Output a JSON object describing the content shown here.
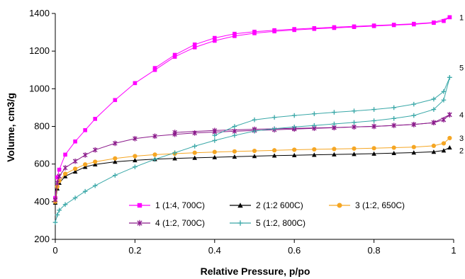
{
  "chart_data": {
    "type": "line",
    "title": "",
    "xlabel": "Relative Pressure, p/po",
    "ylabel": "Volume, cm3/g",
    "xlim": [
      0,
      1
    ],
    "ylim": [
      200,
      1400
    ],
    "xticks": [
      "0",
      "0.2",
      "0.4",
      "0.6",
      "0.8",
      "1"
    ],
    "yticks": [
      "200",
      "400",
      "600",
      "800",
      "1000",
      "1200",
      "1400"
    ],
    "grid": false,
    "legend_position": "bottom-center",
    "series": [
      {
        "name": "1 (1:4, 700C)",
        "end_label": "1",
        "color": "#ff00ff",
        "marker": "square",
        "adsorption": [
          [
            0,
            420
          ],
          [
            0.005,
            530
          ],
          [
            0.01,
            570
          ],
          [
            0.025,
            650
          ],
          [
            0.05,
            720
          ],
          [
            0.075,
            780
          ],
          [
            0.1,
            840
          ],
          [
            0.15,
            940
          ],
          [
            0.2,
            1030
          ],
          [
            0.25,
            1100
          ],
          [
            0.3,
            1170
          ],
          [
            0.35,
            1220
          ],
          [
            0.4,
            1255
          ],
          [
            0.45,
            1280
          ],
          [
            0.5,
            1295
          ],
          [
            0.55,
            1305
          ],
          [
            0.6,
            1312
          ],
          [
            0.65,
            1318
          ],
          [
            0.7,
            1323
          ],
          [
            0.75,
            1328
          ],
          [
            0.8,
            1333
          ],
          [
            0.85,
            1338
          ],
          [
            0.9,
            1342
          ],
          [
            0.95,
            1350
          ],
          [
            0.975,
            1360
          ],
          [
            0.99,
            1380
          ]
        ],
        "desorption": [
          [
            0.99,
            1380
          ],
          [
            0.95,
            1352
          ],
          [
            0.9,
            1345
          ],
          [
            0.85,
            1340
          ],
          [
            0.8,
            1336
          ],
          [
            0.75,
            1331
          ],
          [
            0.7,
            1327
          ],
          [
            0.65,
            1322
          ],
          [
            0.6,
            1317
          ],
          [
            0.55,
            1311
          ],
          [
            0.5,
            1303
          ],
          [
            0.45,
            1292
          ],
          [
            0.4,
            1270
          ],
          [
            0.35,
            1235
          ],
          [
            0.3,
            1180
          ],
          [
            0.25,
            1110
          ]
        ]
      },
      {
        "name": "2 (1:2 600C)",
        "end_label": "2",
        "color": "#000000",
        "marker": "triangle",
        "adsorption": [
          [
            0,
            395
          ],
          [
            0.005,
            470
          ],
          [
            0.01,
            500
          ],
          [
            0.025,
            535
          ],
          [
            0.05,
            560
          ],
          [
            0.075,
            585
          ],
          [
            0.1,
            598
          ],
          [
            0.15,
            612
          ],
          [
            0.2,
            620
          ],
          [
            0.25,
            626
          ],
          [
            0.3,
            630
          ],
          [
            0.35,
            633
          ],
          [
            0.4,
            636
          ],
          [
            0.45,
            639
          ],
          [
            0.5,
            642
          ],
          [
            0.55,
            645
          ],
          [
            0.6,
            647
          ],
          [
            0.65,
            649
          ],
          [
            0.7,
            651
          ],
          [
            0.75,
            653
          ],
          [
            0.8,
            655
          ],
          [
            0.85,
            658
          ],
          [
            0.9,
            661
          ],
          [
            0.95,
            665
          ],
          [
            0.975,
            672
          ],
          [
            0.99,
            688
          ]
        ],
        "desorption": []
      },
      {
        "name": "3 (1:2, 650C)",
        "end_label": "3",
        "color": "#f5a623",
        "marker": "circle",
        "adsorption": [
          [
            0,
            400
          ],
          [
            0.005,
            480
          ],
          [
            0.01,
            510
          ],
          [
            0.025,
            548
          ],
          [
            0.05,
            575
          ],
          [
            0.075,
            598
          ],
          [
            0.1,
            612
          ],
          [
            0.15,
            630
          ],
          [
            0.2,
            642
          ],
          [
            0.25,
            650
          ],
          [
            0.3,
            655
          ],
          [
            0.35,
            660
          ],
          [
            0.4,
            664
          ],
          [
            0.45,
            667
          ],
          [
            0.5,
            670
          ],
          [
            0.55,
            673
          ],
          [
            0.6,
            676
          ],
          [
            0.65,
            678
          ],
          [
            0.7,
            680
          ],
          [
            0.75,
            682
          ],
          [
            0.8,
            684
          ],
          [
            0.85,
            687
          ],
          [
            0.9,
            690
          ],
          [
            0.95,
            697
          ],
          [
            0.975,
            710
          ],
          [
            0.99,
            738
          ]
        ],
        "desorption": []
      },
      {
        "name": "4 (1:2, 700C)",
        "end_label": "4",
        "color": "#8b1a8b",
        "marker": "star",
        "adsorption": [
          [
            0,
            410
          ],
          [
            0.005,
            500
          ],
          [
            0.01,
            535
          ],
          [
            0.025,
            580
          ],
          [
            0.05,
            615
          ],
          [
            0.075,
            648
          ],
          [
            0.1,
            675
          ],
          [
            0.15,
            710
          ],
          [
            0.2,
            735
          ],
          [
            0.25,
            748
          ],
          [
            0.3,
            758
          ],
          [
            0.35,
            765
          ],
          [
            0.4,
            770
          ],
          [
            0.45,
            774
          ],
          [
            0.5,
            778
          ],
          [
            0.55,
            782
          ],
          [
            0.6,
            786
          ],
          [
            0.65,
            790
          ],
          [
            0.7,
            793
          ],
          [
            0.75,
            797
          ],
          [
            0.8,
            800
          ],
          [
            0.85,
            805
          ],
          [
            0.9,
            810
          ],
          [
            0.95,
            820
          ],
          [
            0.975,
            835
          ],
          [
            0.99,
            862
          ]
        ],
        "desorption": [
          [
            0.99,
            862
          ],
          [
            0.95,
            820
          ],
          [
            0.9,
            810
          ],
          [
            0.8,
            800
          ],
          [
            0.7,
            794
          ],
          [
            0.6,
            790
          ],
          [
            0.5,
            785
          ],
          [
            0.4,
            778
          ],
          [
            0.3,
            768
          ]
        ]
      },
      {
        "name": "5 (1:2, 800C)",
        "end_label": "5",
        "color": "#3aa8a8",
        "marker": "plus",
        "adsorption": [
          [
            0,
            290
          ],
          [
            0.005,
            330
          ],
          [
            0.01,
            355
          ],
          [
            0.025,
            385
          ],
          [
            0.05,
            420
          ],
          [
            0.075,
            455
          ],
          [
            0.1,
            485
          ],
          [
            0.15,
            540
          ],
          [
            0.2,
            585
          ],
          [
            0.25,
            625
          ],
          [
            0.3,
            660
          ],
          [
            0.35,
            695
          ],
          [
            0.4,
            725
          ],
          [
            0.45,
            752
          ],
          [
            0.5,
            775
          ],
          [
            0.55,
            788
          ],
          [
            0.6,
            797
          ],
          [
            0.65,
            805
          ],
          [
            0.7,
            813
          ],
          [
            0.75,
            821
          ],
          [
            0.8,
            830
          ],
          [
            0.85,
            842
          ],
          [
            0.9,
            858
          ],
          [
            0.95,
            890
          ],
          [
            0.975,
            940
          ],
          [
            0.99,
            1060
          ]
        ],
        "desorption": [
          [
            0.99,
            1060
          ],
          [
            0.975,
            985
          ],
          [
            0.95,
            945
          ],
          [
            0.9,
            918
          ],
          [
            0.85,
            900
          ],
          [
            0.8,
            890
          ],
          [
            0.75,
            882
          ],
          [
            0.7,
            875
          ],
          [
            0.65,
            867
          ],
          [
            0.6,
            858
          ],
          [
            0.55,
            848
          ],
          [
            0.5,
            835
          ],
          [
            0.45,
            800
          ],
          [
            0.4,
            752
          ]
        ]
      }
    ]
  }
}
